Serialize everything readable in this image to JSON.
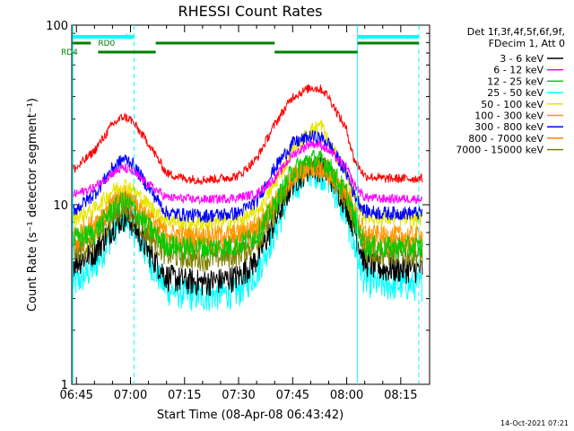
{
  "chart_data": {
    "type": "line",
    "title": "RHESSI Count Rates",
    "xlabel": "Start Time (08-Apr-08 06:43:42)",
    "ylabel": "Count Rate (s⁻¹ detector segment⁻¹)",
    "y_scale": "log",
    "ylim": [
      1,
      100
    ],
    "xlim": [
      "06:43:42",
      "08:23:00"
    ],
    "x_ticks": [
      "06:45",
      "07:00",
      "07:15",
      "07:30",
      "07:45",
      "08:00",
      "08:15"
    ],
    "y_ticks": [
      "1",
      "10",
      "100"
    ],
    "grid": false,
    "legend": {
      "placement": "top-right outside",
      "header": [
        "Det 1f,3f,4f,5f,6f,9f,",
        "FDecim 1, Att 0"
      ]
    },
    "x": [
      "06:45",
      "06:50",
      "06:55",
      "06:58",
      "07:00",
      "07:05",
      "07:10",
      "07:15",
      "07:20",
      "07:25",
      "07:30",
      "07:35",
      "07:40",
      "07:45",
      "07:50",
      "07:53",
      "07:55",
      "08:00",
      "08:02",
      "08:05",
      "08:10",
      "08:15",
      "08:20"
    ],
    "series": [
      {
        "name": "3 - 6 keV",
        "color": "#000000",
        "values": [
          4.8,
          5.5,
          7.5,
          8.5,
          8.2,
          5.5,
          4.0,
          3.8,
          3.7,
          3.8,
          4.0,
          5.0,
          8.0,
          13.5,
          16.5,
          16.0,
          15.0,
          10.0,
          7.5,
          4.8,
          4.4,
          4.4,
          4.4
        ]
      },
      {
        "name": "6 - 12 keV",
        "color": "#ff00ff",
        "values": [
          11.5,
          12.5,
          15.0,
          16.0,
          15.5,
          13.0,
          11.0,
          10.8,
          10.7,
          10.8,
          11.0,
          11.5,
          14.0,
          19.0,
          22.0,
          21.5,
          20.0,
          16.0,
          13.0,
          11.0,
          10.8,
          10.8,
          10.8
        ]
      },
      {
        "name": "12 - 25 keV",
        "color": "#00cc00",
        "values": [
          6.5,
          7.0,
          9.5,
          10.5,
          10.0,
          7.5,
          6.0,
          5.8,
          5.8,
          5.8,
          6.0,
          6.8,
          10.0,
          15.5,
          18.0,
          17.5,
          16.5,
          11.5,
          8.5,
          6.0,
          5.8,
          5.8,
          5.8
        ]
      },
      {
        "name": "25 - 50 keV",
        "color": "#00ffff",
        "values": [
          3.7,
          4.5,
          7.0,
          8.5,
          8.0,
          5.0,
          3.4,
          3.2,
          3.1,
          3.2,
          3.3,
          4.2,
          7.0,
          12.5,
          15.5,
          15.0,
          14.0,
          8.5,
          6.0,
          3.8,
          3.6,
          3.6,
          3.6
        ]
      },
      {
        "name": "50 - 100 keV",
        "color": "#e6e600",
        "values": [
          8.5,
          9.5,
          12.0,
          13.0,
          12.5,
          10.0,
          8.2,
          8.0,
          7.9,
          8.0,
          8.2,
          9.0,
          13.0,
          20.0,
          26.0,
          28.0,
          22.0,
          15.0,
          11.0,
          8.6,
          8.4,
          8.4,
          8.4
        ]
      },
      {
        "name": "100 - 300 keV",
        "color": "#ff9900",
        "values": [
          7.0,
          8.0,
          10.5,
          11.5,
          11.0,
          8.8,
          7.0,
          6.9,
          6.8,
          6.9,
          7.0,
          7.8,
          10.5,
          14.5,
          16.5,
          16.0,
          15.0,
          12.0,
          9.5,
          7.0,
          6.8,
          6.8,
          6.8
        ]
      },
      {
        "name": "300 - 800 keV",
        "color": "#0000ff",
        "values": [
          9.5,
          11.5,
          16.0,
          18.0,
          17.5,
          12.5,
          9.0,
          8.8,
          8.7,
          8.8,
          9.0,
          10.5,
          16.0,
          22.0,
          24.0,
          23.5,
          22.0,
          15.0,
          11.5,
          9.2,
          9.0,
          9.0,
          9.0
        ]
      },
      {
        "name": "800 - 7000 keV",
        "color": "#ff8000",
        "values": [
          6.0,
          7.0,
          9.8,
          11.0,
          10.5,
          8.0,
          6.2,
          6.0,
          6.0,
          6.0,
          6.2,
          7.2,
          10.0,
          14.0,
          16.0,
          15.5,
          14.5,
          11.0,
          8.5,
          6.3,
          6.1,
          6.1,
          6.1
        ]
      },
      {
        "name": "7000 - 15000 keV",
        "color": "#808000",
        "values": [
          5.5,
          6.2,
          8.5,
          9.5,
          9.0,
          6.8,
          5.3,
          5.1,
          5.0,
          5.1,
          5.3,
          6.2,
          9.0,
          14.5,
          17.0,
          16.5,
          15.5,
          10.8,
          8.0,
          5.6,
          5.3,
          5.3,
          5.3
        ]
      },
      {
        "name": "",
        "color": "#ff0000",
        "values": [
          16.0,
          20.0,
          28.0,
          31.0,
          30.0,
          22.0,
          15.0,
          14.0,
          13.8,
          14.0,
          14.5,
          18.0,
          28.0,
          40.0,
          45.0,
          44.0,
          40.0,
          26.0,
          18.0,
          14.5,
          14.0,
          14.0,
          14.0
        ]
      }
    ],
    "annotations": {
      "N": {
        "label": "N",
        "color": "#00ffff",
        "segments": [
          [
            "06:44",
            "07:01"
          ],
          [
            "08:03",
            "08:20"
          ]
        ]
      },
      "RD0": {
        "label": "RD0",
        "color": "#008000",
        "segments": [
          [
            "06:44",
            "06:49"
          ],
          [
            "07:07",
            "07:40"
          ],
          [
            "08:03",
            "08:20"
          ]
        ]
      },
      "RD4": {
        "label": "RD4",
        "color": "#008000",
        "segments": [
          [
            "06:51",
            "07:07"
          ],
          [
            "07:40",
            "08:03"
          ]
        ]
      },
      "solid_verticals": [
        "06:44",
        "08:03"
      ],
      "dashed_verticals": [
        "07:01",
        "08:20"
      ]
    }
  },
  "footer": {
    "timestamp": "14-Oct-2021 07:21"
  }
}
